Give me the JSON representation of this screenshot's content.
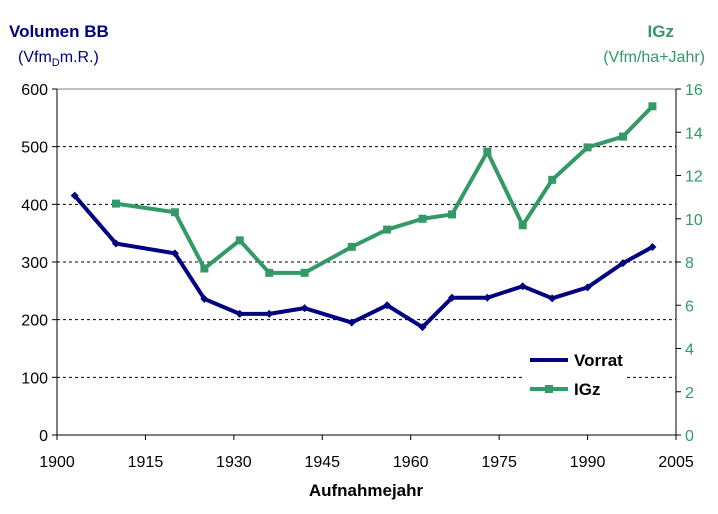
{
  "chart_data": {
    "type": "line",
    "title_left": "Volumen BB",
    "unit_left_prefix": "(Vfm",
    "unit_left_sub": "D",
    "unit_left_suffix": "m.R.)",
    "title_right": "IGz",
    "unit_right": "(Vfm/ha+Jahr)",
    "xlabel": "Aufnahmejahr",
    "xlim": [
      1900,
      2005
    ],
    "ylim_left": [
      0,
      600
    ],
    "ylim_right": [
      0,
      16
    ],
    "xticks": [
      "1900",
      "1915",
      "1930",
      "1945",
      "1960",
      "1975",
      "1990",
      "2005"
    ],
    "yticks_left": [
      "0",
      "100",
      "200",
      "300",
      "400",
      "500",
      "600"
    ],
    "yticks_right": [
      "0",
      "2",
      "4",
      "6",
      "8",
      "10",
      "12",
      "14",
      "16"
    ],
    "grid": "horizontal dashed",
    "legend_position": "bottom-right",
    "series": [
      {
        "name": "Vorrat",
        "axis": "left",
        "color": "#000080",
        "x": [
          1903,
          1910,
          1920,
          1925,
          1931,
          1936,
          1942,
          1950,
          1956,
          1962,
          1967,
          1973,
          1979,
          1984,
          1990,
          1996,
          2001
        ],
        "y": [
          415,
          332,
          315,
          236,
          210,
          210,
          220,
          195,
          225,
          187,
          238,
          238,
          258,
          237,
          256,
          298,
          326
        ]
      },
      {
        "name": "IGz",
        "axis": "right",
        "color": "#339966",
        "x": [
          1910,
          1920,
          1925,
          1931,
          1936,
          1942,
          1950,
          1956,
          1962,
          1967,
          1973,
          1979,
          1984,
          1990,
          1996,
          2001
        ],
        "y": [
          10.7,
          10.3,
          7.7,
          9.0,
          7.5,
          7.5,
          8.7,
          9.5,
          10.0,
          10.2,
          13.1,
          9.7,
          11.8,
          13.3,
          13.8,
          15.2
        ]
      }
    ]
  }
}
